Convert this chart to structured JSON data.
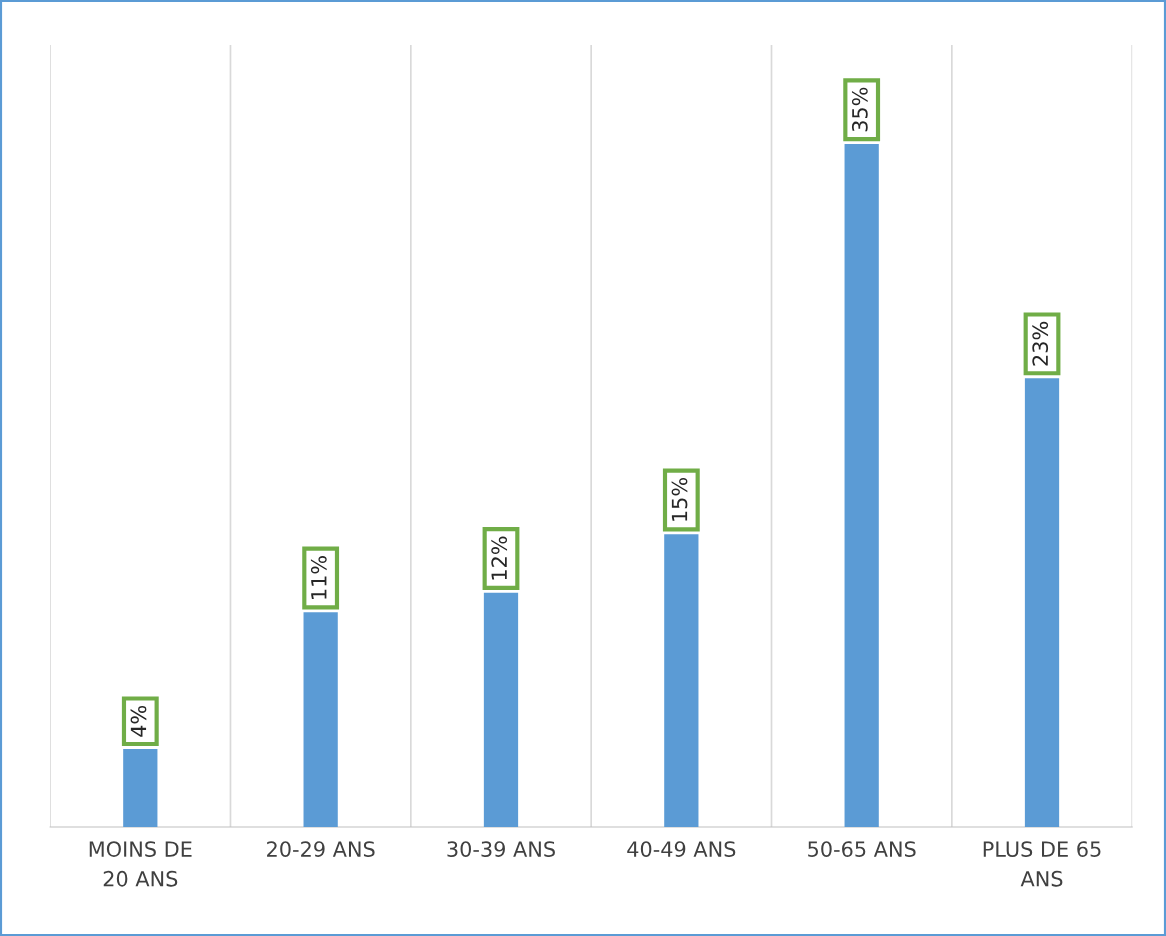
{
  "chart_data": {
    "type": "bar",
    "categories": [
      "MOINS DE\n20 ANS",
      "20-29 ANS",
      "30-39 ANS",
      "40-49 ANS",
      "50-65 ANS",
      "PLUS DE 65\nANS"
    ],
    "values": [
      4,
      11,
      12,
      15,
      35,
      23
    ],
    "value_labels": [
      "4%",
      "11%",
      "12%",
      "15%",
      "35%",
      "23%"
    ],
    "color": "#5b9bd5",
    "grid": "x"
  }
}
